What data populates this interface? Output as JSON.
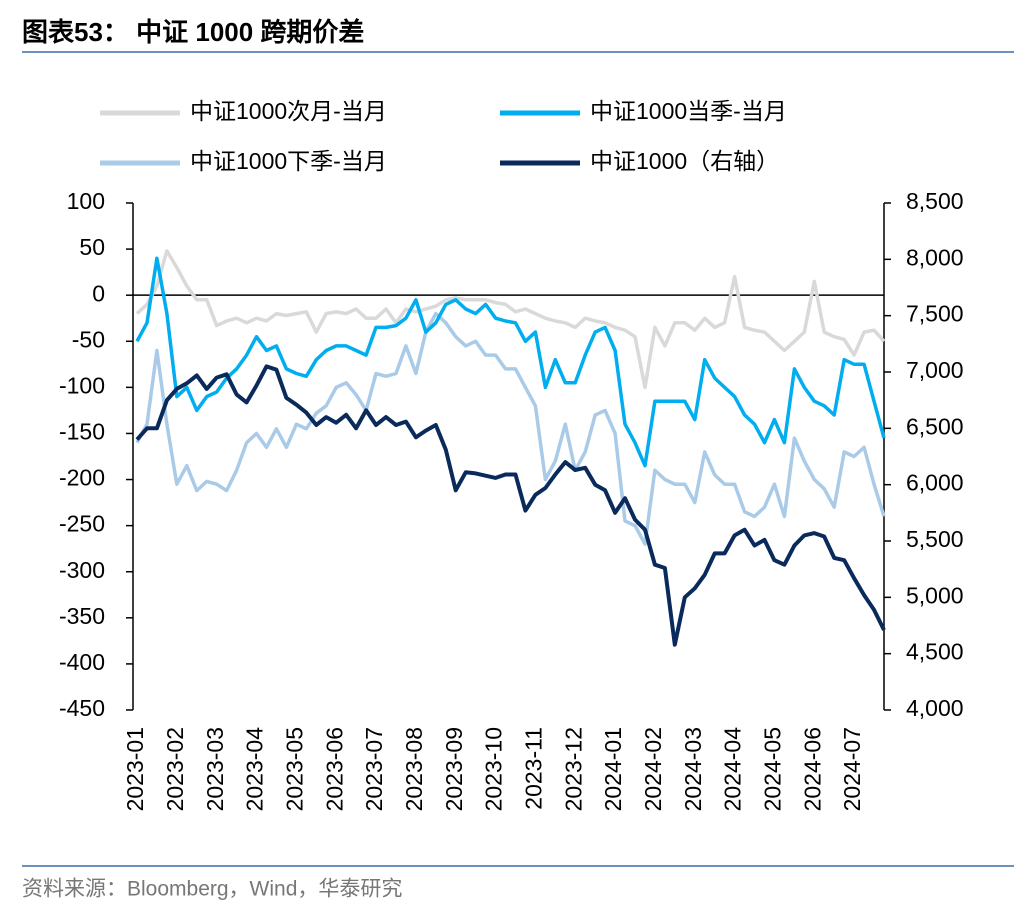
{
  "header": {
    "title": "图表53：  中证 1000 跨期价差"
  },
  "footer": {
    "source": "资料来源：Bloomberg，Wind，华泰研究"
  },
  "chart_data": {
    "type": "line",
    "categories": [
      "2023-01",
      null,
      null,
      null,
      "2023-02",
      null,
      null,
      null,
      "2023-03",
      null,
      null,
      null,
      "2023-04",
      null,
      null,
      null,
      "2023-05",
      null,
      null,
      null,
      "2023-06",
      null,
      null,
      null,
      "2023-07",
      null,
      null,
      null,
      "2023-08",
      null,
      null,
      null,
      "2023-09",
      null,
      null,
      null,
      "2023-10",
      null,
      null,
      null,
      "2023-11",
      null,
      null,
      null,
      "2023-12",
      null,
      null,
      null,
      "2024-01",
      null,
      null,
      null,
      "2024-02",
      null,
      null,
      null,
      "2024-03",
      null,
      null,
      null,
      "2024-04",
      null,
      null,
      null,
      "2024-05",
      null,
      null,
      null,
      "2024-06",
      null,
      null,
      null,
      "2024-07",
      null,
      null,
      null
    ],
    "ylim": [
      -450,
      100
    ],
    "yticks": [
      100,
      50,
      0,
      -50,
      -100,
      -150,
      -200,
      -250,
      -300,
      -350,
      -400,
      -450
    ],
    "y2lim": [
      4000,
      8500
    ],
    "y2ticks": [
      {
        "value": 8500,
        "label": "8,500"
      },
      {
        "value": 8000,
        "label": "8,000"
      },
      {
        "value": 7500,
        "label": "7,500"
      },
      {
        "value": 7000,
        "label": "7,000"
      },
      {
        "value": 6500,
        "label": "6,500"
      },
      {
        "value": 6000,
        "label": "6,000"
      },
      {
        "value": 5500,
        "label": "5,500"
      },
      {
        "value": 5000,
        "label": "5,000"
      },
      {
        "value": 4500,
        "label": "4,500"
      },
      {
        "value": 4000,
        "label": "4,000"
      }
    ],
    "series": [
      {
        "name": "中证1000次月-当月",
        "color": "#d9d9d9",
        "values": [
          -20,
          -10,
          10,
          48,
          30,
          10,
          -5,
          -5,
          -33,
          -28,
          -25,
          -30,
          -25,
          -28,
          -20,
          -22,
          -20,
          -18,
          -40,
          -20,
          -18,
          -20,
          -15,
          -25,
          -25,
          -15,
          -30,
          -15,
          -18,
          -15,
          -12,
          -5,
          -3,
          -5,
          -5,
          -5,
          -8,
          -10,
          -18,
          -15,
          -20,
          -25,
          -28,
          -30,
          -35,
          -25,
          -28,
          -30,
          -35,
          -38,
          -45,
          -100,
          -35,
          -55,
          -30,
          -30,
          -38,
          -25,
          -35,
          -30,
          20,
          -35,
          -38,
          -40,
          -50,
          -60,
          -50,
          -40,
          15,
          -40,
          -45,
          -48,
          -65,
          -40,
          -38,
          -50
        ]
      },
      {
        "name": "中证1000当季-当月",
        "color": "#00aeef",
        "values": [
          -50,
          -30,
          40,
          -20,
          -110,
          -100,
          -125,
          -110,
          -105,
          -90,
          -80,
          -65,
          -45,
          -60,
          -55,
          -80,
          -85,
          -88,
          -70,
          -60,
          -55,
          -55,
          -60,
          -65,
          -35,
          -35,
          -33,
          -25,
          -5,
          -40,
          -30,
          -10,
          -5,
          -15,
          -20,
          -10,
          -25,
          -28,
          -30,
          -50,
          -40,
          -100,
          -70,
          -95,
          -95,
          -65,
          -40,
          -35,
          -60,
          -140,
          -160,
          -185,
          -115,
          -115,
          -115,
          -115,
          -135,
          -70,
          -90,
          -100,
          -110,
          -130,
          -140,
          -160,
          -135,
          -160,
          -80,
          -100,
          -115,
          -120,
          -130,
          -70,
          -75,
          -75,
          -115,
          -155
        ]
      },
      {
        "name": "中证1000下季-当月",
        "color": "#a9cbe8",
        "values": [
          -160,
          -140,
          -60,
          -140,
          -205,
          -185,
          -212,
          -202,
          -205,
          -212,
          -190,
          -160,
          -150,
          -165,
          -145,
          -165,
          -140,
          -145,
          -128,
          -120,
          -100,
          -95,
          -108,
          -125,
          -85,
          -88,
          -85,
          -55,
          -85,
          -40,
          -20,
          -30,
          -45,
          -55,
          -50,
          -65,
          -65,
          -80,
          -80,
          -100,
          -120,
          -200,
          -180,
          -140,
          -190,
          -170,
          -130,
          -125,
          -150,
          -245,
          -250,
          -270,
          -190,
          -200,
          -205,
          -205,
          -225,
          -170,
          -195,
          -205,
          -205,
          -235,
          -240,
          -230,
          -205,
          -240,
          -155,
          -180,
          -200,
          -210,
          -230,
          -170,
          -175,
          -165,
          -205,
          -240
        ]
      },
      {
        "name": "中证1000（右轴）",
        "color": "#0b2a5c",
        "axis": "y2",
        "values": [
          6400,
          6500,
          6500,
          6750,
          6850,
          6900,
          6970,
          6850,
          6950,
          6980,
          6800,
          6730,
          6880,
          7050,
          7020,
          6770,
          6710,
          6640,
          6530,
          6600,
          6550,
          6620,
          6500,
          6660,
          6530,
          6600,
          6530,
          6560,
          6420,
          6480,
          6530,
          6310,
          5950,
          6110,
          6100,
          6080,
          6060,
          6090,
          6090,
          5770,
          5910,
          5970,
          6090,
          6200,
          6130,
          6150,
          6000,
          5950,
          5750,
          5880,
          5690,
          5600,
          5290,
          5260,
          4580,
          5000,
          5080,
          5200,
          5390,
          5390,
          5550,
          5600,
          5460,
          5510,
          5330,
          5290,
          5460,
          5550,
          5570,
          5540,
          5350,
          5330,
          5170,
          5020,
          4890,
          4710
        ]
      }
    ]
  }
}
